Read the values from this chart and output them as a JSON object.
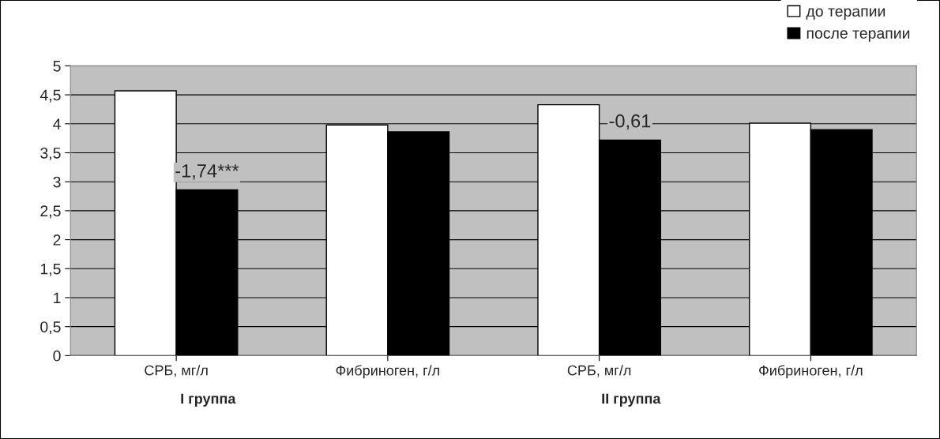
{
  "chart_data": {
    "type": "bar",
    "categories": [
      "СРБ, мг/л",
      "Фибриноген, г/л",
      "СРБ, мг/л",
      "Фибриноген, г/л"
    ],
    "series": [
      {
        "name": "до терапии",
        "color": "#ffffff",
        "values": [
          4.57,
          3.98,
          4.33,
          4.01
        ]
      },
      {
        "name": "после терапии",
        "color": "#000000",
        "values": [
          2.86,
          3.86,
          3.72,
          3.9
        ]
      }
    ],
    "ylim": [
      0,
      5
    ],
    "yticks": [
      0,
      {
        "value": 0.5,
        "label": "0,5"
      },
      1,
      {
        "value": 1.5,
        "label": "1,5"
      },
      2,
      {
        "value": 2.5,
        "label": "2,5"
      },
      3,
      {
        "value": 3.5,
        "label": "3,5"
      },
      4,
      {
        "value": 4.5,
        "label": "4,5"
      },
      5
    ],
    "grid": "y",
    "legend": "top right",
    "annotations": [
      "I группа",
      "II группа",
      "-1,74***",
      "-0,61"
    ]
  }
}
